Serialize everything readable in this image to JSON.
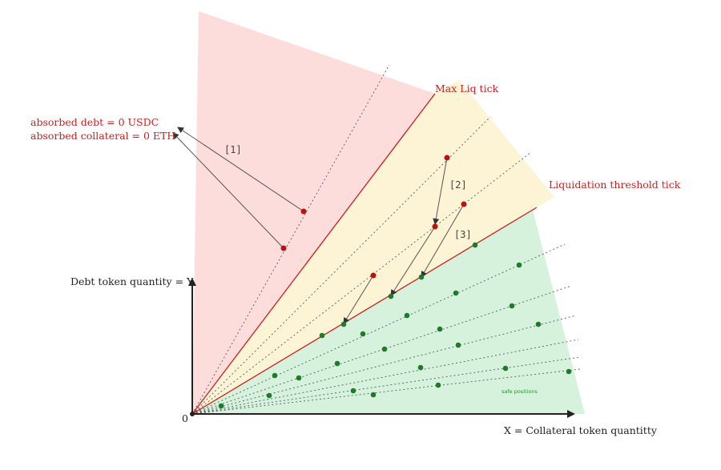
{
  "labels": {
    "max_liq_tick": "Max Liq tick",
    "liquidation_threshold_tick": "Liquidation threshold tick",
    "absorbed_debt": "absorbed debt = 0 USDC",
    "absorbed_collateral": "absorbed collateral = 0 ETH",
    "step_1": "[1]",
    "step_2": "[2]",
    "step_3": "[3]",
    "y_axis": "Debt token quantity = Y",
    "x_axis": "X = Collateral token quantitty",
    "origin": "0",
    "safe_positions": "safe positions"
  },
  "colors": {
    "liquidated_zone": "#fddcdc",
    "liquidation_zone": "#fdf4d6",
    "safe_zone": "#d6f2dc",
    "tick_line": "#cc1f1f",
    "red_dot": "#bb1111",
    "green_dot": "#1f7a2a",
    "axis": "#222222"
  }
}
